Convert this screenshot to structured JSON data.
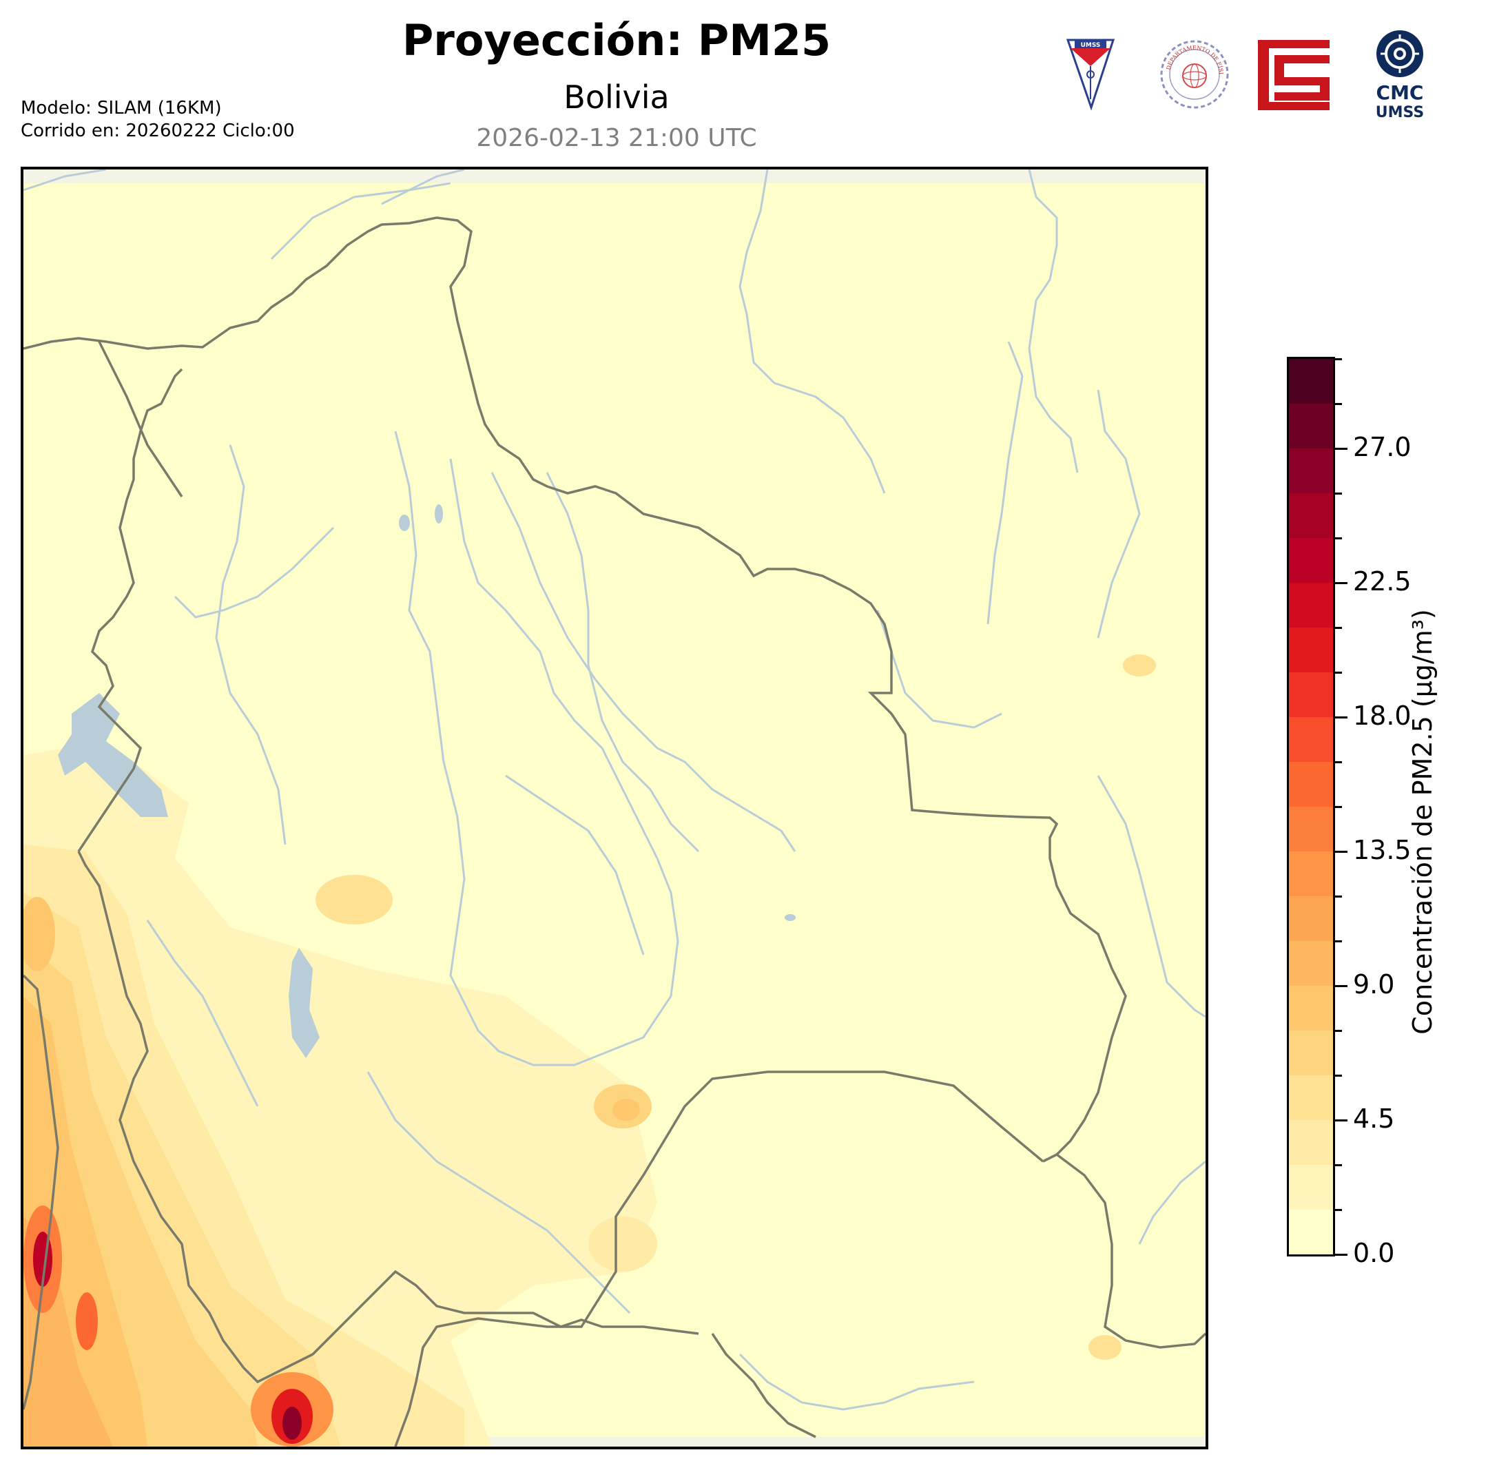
{
  "header": {
    "title": "Proyección: PM25",
    "region": "Bolivia",
    "valid_time": "2026-02-13 21:00 UTC",
    "model": "Modelo: SILAM (16KM)",
    "run": "Corrido en: 20260222 Ciclo:00"
  },
  "logos": {
    "umss_shield_text": "UMSS",
    "fisica_seal_text": "DEPARTAMENTO DE FÍSICA",
    "cmc_line1": "CMC",
    "cmc_line2": "UMSS"
  },
  "colorbar": {
    "label": "Concentración de PM2.5 (µg/m³)",
    "min": 0.0,
    "max": 30.0,
    "step": 1.5,
    "tick_labels": [
      "0.0",
      "4.5",
      "9.0",
      "13.5",
      "18.0",
      "22.5",
      "27.0"
    ],
    "tick_values": [
      0.0,
      4.5,
      9.0,
      13.5,
      18.0,
      22.5,
      27.0
    ],
    "colors": [
      "#ffffcc",
      "#fff4b9",
      "#ffeaa6",
      "#fee192",
      "#fed57f",
      "#fec76c",
      "#feb75e",
      "#fea551",
      "#fd9446",
      "#fd7e3c",
      "#fc6832",
      "#f84e2b",
      "#ef3224",
      "#e31a1c",
      "#d10c21",
      "#bd0026",
      "#a50026",
      "#8c0028",
      "#6e0026",
      "#4d0020"
    ]
  },
  "map_colors": {
    "background": "#ffffcc",
    "border_line": "#7a7a6a",
    "river": "#b9cdd8",
    "lake": "#b9cdd8"
  }
}
